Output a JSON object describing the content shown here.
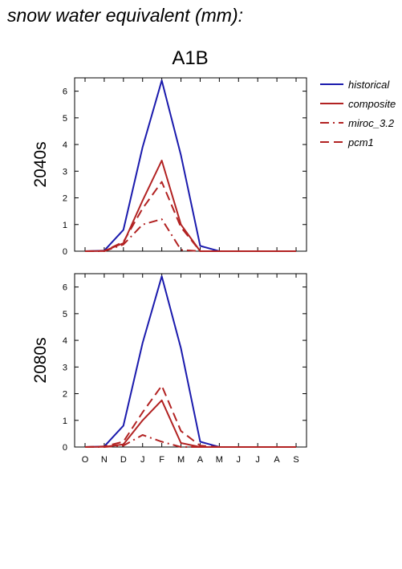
{
  "page_title": "snow water equivalent (mm):",
  "chart_data": {
    "type": "line",
    "title": "A1B",
    "categories": [
      "O",
      "N",
      "D",
      "J",
      "F",
      "M",
      "A",
      "M",
      "J",
      "J",
      "A",
      "S"
    ],
    "ylim": [
      0,
      6.5
    ],
    "yticks": [
      0,
      1,
      2,
      3,
      4,
      5,
      6
    ],
    "legend_placement": "right",
    "legend": [
      {
        "name": "historical",
        "color": "#1a1aad",
        "dash": "solid"
      },
      {
        "name": "composite",
        "color": "#b22222",
        "dash": "solid"
      },
      {
        "name": "miroc_3.2",
        "color": "#b22222",
        "dash": "dashdot"
      },
      {
        "name": "pcm1",
        "color": "#b22222",
        "dash": "dashed"
      }
    ],
    "panels": [
      {
        "label": "2040s",
        "series": [
          {
            "name": "historical",
            "values": [
              0,
              0.02,
              0.8,
              3.9,
              6.4,
              3.6,
              0.2,
              0,
              0,
              0,
              0,
              0
            ]
          },
          {
            "name": "composite",
            "values": [
              0,
              0.01,
              0.3,
              1.9,
              3.4,
              1.0,
              0,
              0,
              0,
              0,
              0,
              0
            ]
          },
          {
            "name": "miroc_3.2",
            "values": [
              0,
              0,
              0.25,
              1.0,
              1.2,
              0.05,
              0,
              0,
              0,
              0,
              0,
              0
            ]
          },
          {
            "name": "pcm1",
            "values": [
              0,
              0.01,
              0.35,
              1.6,
              2.6,
              0.9,
              0,
              0,
              0,
              0,
              0,
              0
            ]
          }
        ]
      },
      {
        "label": "2080s",
        "series": [
          {
            "name": "historical",
            "values": [
              0,
              0.02,
              0.8,
              3.9,
              6.4,
              3.7,
              0.2,
              0,
              0,
              0,
              0,
              0
            ]
          },
          {
            "name": "composite",
            "values": [
              0,
              0.01,
              0.1,
              1.0,
              1.75,
              0.15,
              0,
              0,
              0,
              0,
              0,
              0
            ]
          },
          {
            "name": "miroc_3.2",
            "values": [
              0,
              0,
              0.05,
              0.45,
              0.2,
              0,
              0,
              0,
              0,
              0,
              0,
              0
            ]
          },
          {
            "name": "pcm1",
            "values": [
              0,
              0.02,
              0.2,
              1.3,
              2.3,
              0.6,
              0.05,
              0,
              0,
              0,
              0,
              0
            ]
          }
        ]
      }
    ]
  }
}
